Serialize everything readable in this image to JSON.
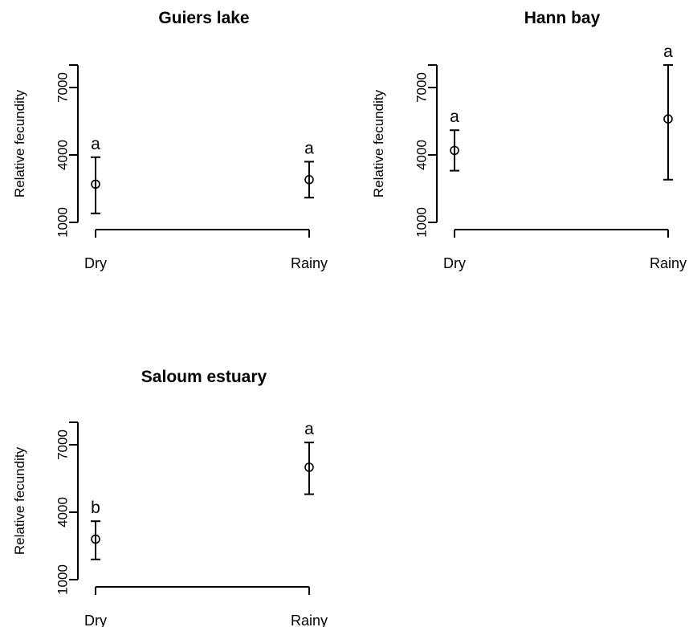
{
  "chart_data": [
    {
      "type": "scatter",
      "title": "Guiers lake",
      "xlabel": "",
      "ylabel": "Relative fecundity",
      "categories": [
        "Dry",
        "Rainy"
      ],
      "yticks": [
        "1000",
        "4000",
        "7000"
      ],
      "ylim": [
        1000,
        8000
      ],
      "means": [
        2700,
        2900
      ],
      "lower": [
        1400,
        2100
      ],
      "upper": [
        3900,
        3700
      ],
      "letters": [
        "a",
        "a"
      ]
    },
    {
      "type": "scatter",
      "title": "Hann bay",
      "xlabel": "",
      "ylabel": "Relative fecundity",
      "categories": [
        "Dry",
        "Rainy"
      ],
      "yticks": [
        "1000",
        "4000",
        "7000"
      ],
      "ylim": [
        1000,
        8000
      ],
      "means": [
        4200,
        5600
      ],
      "lower": [
        3300,
        2900
      ],
      "upper": [
        5100,
        8000
      ],
      "letters": [
        "a",
        "a"
      ]
    },
    {
      "type": "scatter",
      "title": "Saloum estuary",
      "xlabel": "",
      "ylabel": "Relative fecundity",
      "categories": [
        "Dry",
        "Rainy"
      ],
      "yticks": [
        "1000",
        "4000",
        "7000"
      ],
      "ylim": [
        1000,
        8000
      ],
      "means": [
        2800,
        6000
      ],
      "lower": [
        1900,
        4800
      ],
      "upper": [
        3600,
        7100
      ],
      "letters": [
        "b",
        "a"
      ]
    }
  ]
}
